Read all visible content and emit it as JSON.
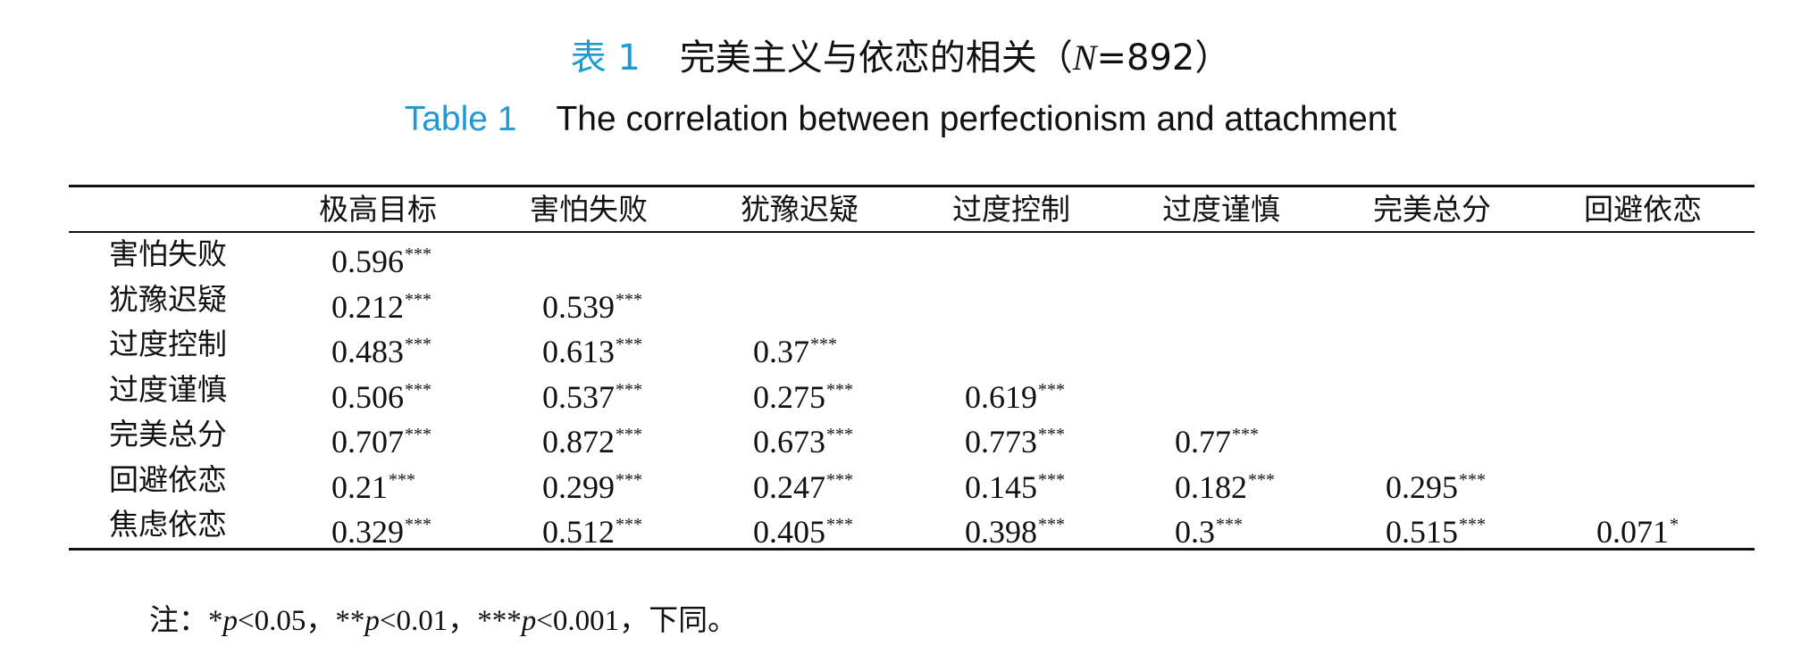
{
  "header": {
    "title_cn": {
      "label": "表 1",
      "text": "完美主义与依恋的相关（",
      "n_symbol": "N",
      "n_text": "=892）"
    },
    "title_en": {
      "label": "Table 1",
      "text": "The correlation between perfectionism and attachment"
    }
  },
  "table": {
    "columns": [
      "极高目标",
      "害怕失败",
      "犹豫迟疑",
      "过度控制",
      "过度谨慎",
      "完美总分",
      "回避依恋"
    ],
    "rows": [
      {
        "label": "害怕失败",
        "cells": [
          {
            "value": 0.596,
            "sig": "***"
          }
        ]
      },
      {
        "label": "犹豫迟疑",
        "cells": [
          {
            "value": 0.212,
            "sig": "***"
          },
          {
            "value": 0.539,
            "sig": "***"
          }
        ]
      },
      {
        "label": "过度控制",
        "cells": [
          {
            "value": 0.483,
            "sig": "***"
          },
          {
            "value": 0.613,
            "sig": "***"
          },
          {
            "value": 0.37,
            "sig": "***"
          }
        ]
      },
      {
        "label": "过度谨慎",
        "cells": [
          {
            "value": 0.506,
            "sig": "***"
          },
          {
            "value": 0.537,
            "sig": "***"
          },
          {
            "value": 0.275,
            "sig": "***"
          },
          {
            "value": 0.619,
            "sig": "***"
          }
        ]
      },
      {
        "label": "完美总分",
        "cells": [
          {
            "value": 0.707,
            "sig": "***"
          },
          {
            "value": 0.872,
            "sig": "***"
          },
          {
            "value": 0.673,
            "sig": "***"
          },
          {
            "value": 0.773,
            "sig": "***"
          },
          {
            "value": 0.77,
            "sig": "***"
          }
        ]
      },
      {
        "label": "回避依恋",
        "cells": [
          {
            "value": 0.21,
            "sig": "***"
          },
          {
            "value": 0.299,
            "sig": "***"
          },
          {
            "value": 0.247,
            "sig": "***"
          },
          {
            "value": 0.145,
            "sig": "***"
          },
          {
            "value": 0.182,
            "sig": "***"
          },
          {
            "value": 0.295,
            "sig": "***"
          }
        ]
      },
      {
        "label": "焦虑依恋",
        "cells": [
          {
            "value": 0.329,
            "sig": "***"
          },
          {
            "value": 0.512,
            "sig": "***"
          },
          {
            "value": 0.405,
            "sig": "***"
          },
          {
            "value": 0.398,
            "sig": "***"
          },
          {
            "value": 0.3,
            "sig": "***"
          },
          {
            "value": 0.515,
            "sig": "***"
          },
          {
            "value": 0.071,
            "sig": "*"
          }
        ]
      }
    ]
  },
  "note": [
    "注：*",
    "p",
    "<0.05，**",
    "p",
    "<0.01，***",
    "p",
    "<0.001，下同。"
  ]
}
